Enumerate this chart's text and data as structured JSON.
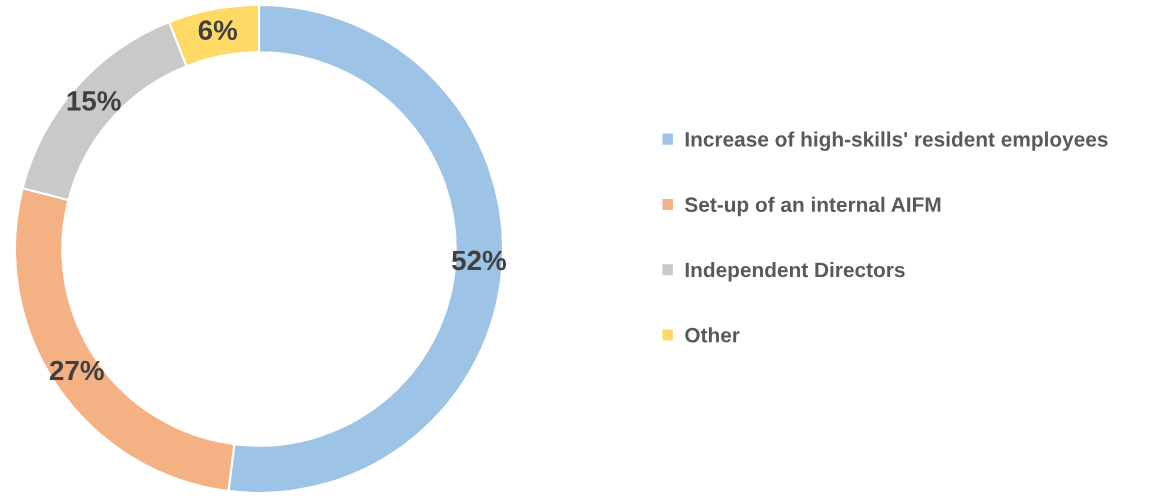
{
  "chart_data": {
    "type": "donut",
    "categories": [
      "Increase of high-skills' resident employees",
      "Set-up of an internal AIFM",
      "Independent Directors",
      "Other"
    ],
    "values": [
      52,
      27,
      15,
      6
    ],
    "value_labels": [
      "52%",
      "27%",
      "15%",
      "6%"
    ],
    "colors": [
      "#9dc3e6",
      "#f4b183",
      "#c9c9c9",
      "#ffd966"
    ],
    "legend": "right"
  }
}
